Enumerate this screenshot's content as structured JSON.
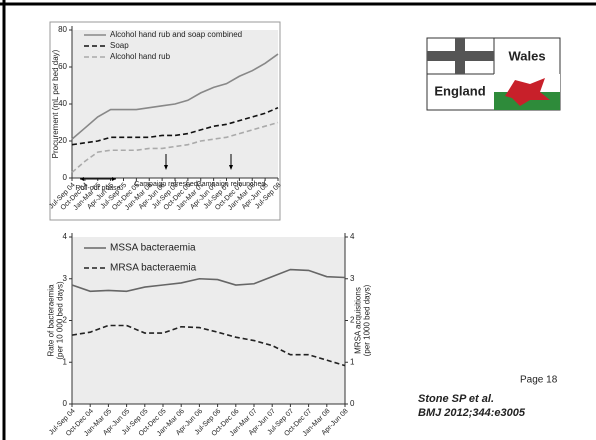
{
  "chart_data": [
    {
      "type": "line",
      "ylabel": "Procurement (mL per bed day)",
      "categories": [
        "Jul-Sep 04",
        "Oct-Dec 04",
        "Jan-Mar 05",
        "Apr-Jun 05",
        "Jul-Sep 05",
        "Oct-Dec 05",
        "Jan-Mar 06",
        "Apr-Jun 06",
        "Jul-Sep 06",
        "Oct-Dec 06",
        "Jan-Mar 07",
        "Apr-Jun 07",
        "Jul-Sep 07",
        "Oct-Dec 07",
        "Jan-Mar 08",
        "Apr-Jun 08",
        "Jul-Sep 08"
      ],
      "series": [
        {
          "name": "Alcohol hand rub and soap combined",
          "color": "#888888",
          "style": "solid",
          "values": [
            21,
            27,
            33,
            37,
            37,
            37,
            38,
            39,
            40,
            42,
            46,
            49,
            51,
            55,
            58,
            62,
            67
          ]
        },
        {
          "name": "Soap",
          "color": "#111111",
          "style": "dashed",
          "values": [
            18,
            19,
            20,
            22,
            22,
            22,
            22,
            23,
            23,
            24,
            26,
            28,
            29,
            31,
            33,
            35,
            38
          ]
        },
        {
          "name": "Alcohol hand rub",
          "color": "#aaaaaa",
          "style": "dashed",
          "values": [
            3,
            9,
            14,
            15,
            15,
            15,
            16,
            16,
            17,
            18,
            20,
            21,
            22,
            24,
            26,
            28,
            30
          ]
        }
      ],
      "annotations": [
        "Roll-out phase",
        "Campaign refreshed",
        "Campaign relaunched"
      ],
      "ylim": [
        0,
        80
      ],
      "yticks": [
        0,
        20,
        40,
        60,
        80
      ]
    },
    {
      "type": "line",
      "ylabel": [
        "Rate of bacteraemia",
        "(per 10 000 bed days)"
      ],
      "y2label": [
        "MRSA acquisitions",
        "(per 1000 bed days)"
      ],
      "categories": [
        "Jul-Sep 04",
        "Oct-Dec 04",
        "Jan-Mar 05",
        "Apr-Jun 05",
        "Jul-Sep 05",
        "Oct-Dec 05",
        "Jan-Mar 06",
        "Apr-Jun 06",
        "Jul-Sep 06",
        "Oct-Dec 06",
        "Jan-Mar 07",
        "Apr-Jun 07",
        "Jul-Sep 07",
        "Oct-Dec 07",
        "Jan-Mar 08",
        "Apr-Jun 08"
      ],
      "series": [
        {
          "name": "MSSA bacteraemia",
          "color": "#666666",
          "style": "solid",
          "values": [
            2.85,
            2.7,
            2.72,
            2.7,
            2.8,
            2.85,
            2.9,
            3.0,
            2.98,
            2.85,
            2.88,
            3.05,
            3.22,
            3.2,
            3.05,
            3.03
          ]
        },
        {
          "name": "MRSA bacteraemia",
          "color": "#222222",
          "style": "dashed",
          "values": [
            1.65,
            1.72,
            1.88,
            1.88,
            1.7,
            1.7,
            1.85,
            1.83,
            1.72,
            1.6,
            1.52,
            1.4,
            1.18,
            1.18,
            1.05,
            0.92
          ]
        }
      ],
      "ylim": [
        0,
        4
      ],
      "yticks": [
        0,
        1,
        2,
        3,
        4
      ],
      "y2lim": [
        0,
        4
      ],
      "y2ticks": [
        0,
        1,
        2,
        3,
        4
      ]
    }
  ],
  "slide": {
    "wales": "Wales",
    "england": "England",
    "page": "Page 18",
    "citation": [
      "Stone SP et al.",
      "BMJ 2012;344:e3005"
    ]
  }
}
